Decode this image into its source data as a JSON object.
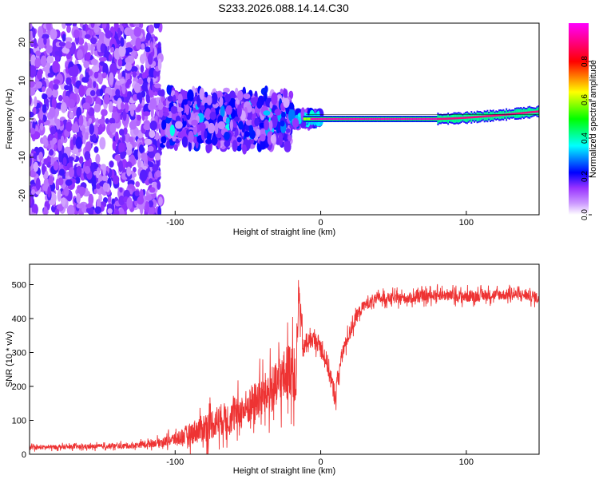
{
  "title": "S233.2026.088.14.14.C30",
  "chart_data": [
    {
      "type": "heatmap",
      "id": "spectrogram",
      "xlabel": "Height of straight line (km)",
      "ylabel": "Frequency (Hz)",
      "xlim": [
        -200,
        150
      ],
      "ylim": [
        -25,
        25
      ],
      "xticks": [
        -100,
        0,
        100
      ],
      "yticks": [
        -20,
        -10,
        0,
        10,
        20
      ],
      "colorbar": {
        "label": "Normalized spectral amplitude",
        "range": [
          0,
          1
        ],
        "ticks": [
          0.0,
          0.2,
          0.4,
          0.6,
          0.8
        ],
        "colors": [
          "#ffffff",
          "#9933ff",
          "#0000ff",
          "#00ffff",
          "#00ff00",
          "#ffff00",
          "#ff0000",
          "#ff00ff"
        ]
      },
      "regions": [
        {
          "x": [
            -200,
            -110
          ],
          "description": "scattered noise",
          "amplitude": [
            0.1,
            0.3
          ],
          "freq_spread": 25
        },
        {
          "x": [
            -110,
            -20
          ],
          "description": "dense noise band",
          "amplitude": [
            0.2,
            0.5
          ],
          "freq_spread": 8
        },
        {
          "x": [
            -20,
            0
          ],
          "description": "narrowing band",
          "amplitude": [
            0.3,
            0.6
          ],
          "freq_spread": 2
        },
        {
          "x": [
            0,
            80
          ],
          "description": "strong tone",
          "frequency": 0,
          "amplitude": [
            0.9,
            1.0
          ]
        },
        {
          "x": [
            80,
            150
          ],
          "description": "tone rising",
          "frequency": [
            0,
            2
          ],
          "amplitude": [
            0.7,
            1.0
          ]
        }
      ]
    },
    {
      "type": "line",
      "id": "snr",
      "xlabel": "Height of straight line (km)",
      "ylabel": "SNR (10 * v/v)",
      "xlim": [
        -200,
        150
      ],
      "ylim": [
        0,
        560
      ],
      "xticks": [
        -100,
        0,
        100
      ],
      "yticks": [
        0,
        100,
        200,
        300,
        400,
        500
      ],
      "color": "#ee3333",
      "series": [
        {
          "name": "SNR",
          "x": [
            -200,
            -160,
            -130,
            -110,
            -100,
            -90,
            -80,
            -70,
            -60,
            -50,
            -40,
            -30,
            -25,
            -20,
            -17,
            -15,
            -12,
            -10,
            -5,
            0,
            5,
            8,
            10,
            12,
            15,
            20,
            25,
            30,
            40,
            60,
            80,
            100,
            120,
            140,
            150
          ],
          "y": [
            20,
            22,
            25,
            35,
            45,
            60,
            80,
            100,
            110,
            140,
            170,
            200,
            230,
            260,
            200,
            480,
            300,
            330,
            340,
            320,
            260,
            200,
            170,
            230,
            300,
            360,
            410,
            440,
            460,
            460,
            470,
            465,
            470,
            470,
            460
          ],
          "noise_amplitude": [
            8,
            8,
            10,
            15,
            25,
            40,
            55,
            60,
            60,
            70,
            80,
            90,
            100,
            110,
            80,
            60,
            40,
            30,
            30,
            30,
            40,
            40,
            40,
            30,
            30,
            25,
            25,
            20,
            20,
            20,
            20,
            22,
            20,
            20,
            20
          ]
        }
      ]
    }
  ]
}
